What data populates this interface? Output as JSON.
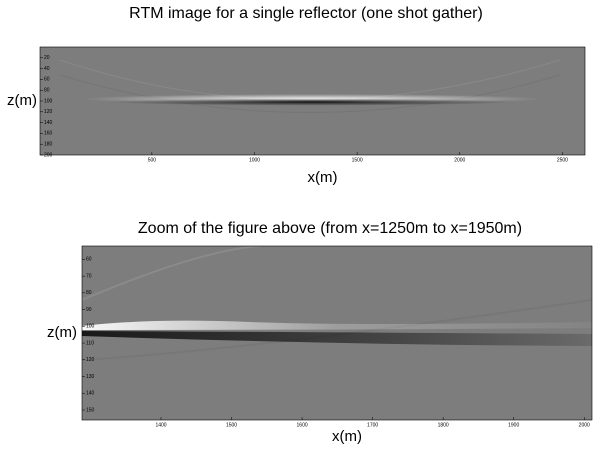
{
  "chart_data": [
    {
      "type": "image",
      "title": "RTM image for a single reflector (one shot gather)",
      "xlabel": "x(m)",
      "ylabel": "z(m)",
      "xlim": [
        -45,
        2610
      ],
      "xticks": [
        500,
        1000,
        1500,
        2000,
        2500
      ],
      "ylim": [
        0,
        200
      ],
      "yticks": [
        20,
        40,
        60,
        80,
        100,
        120,
        140,
        160,
        180,
        200
      ],
      "y_reversed": true
    },
    {
      "type": "image",
      "title": "Zoom of the figure above (from x=1250m to x=1950m)",
      "xlabel": "x(m)",
      "ylabel": "z(m)",
      "xlim": [
        1288,
        2011
      ],
      "xticks": [
        1400,
        1500,
        1600,
        1700,
        1800,
        1900,
        2000
      ],
      "ylim": [
        52,
        156
      ],
      "yticks": [
        60,
        70,
        80,
        90,
        100,
        110,
        120,
        130,
        140,
        150
      ],
      "y_reversed": true
    }
  ]
}
